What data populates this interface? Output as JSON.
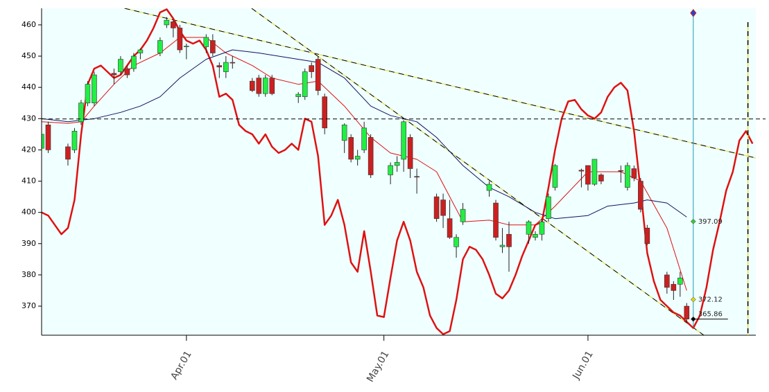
{
  "chart_data": {
    "type": "candlestick",
    "xlim": [
      -22,
      86.5
    ],
    "ylim": [
      360.7,
      465.3
    ],
    "yticks": [
      370,
      380,
      390,
      400,
      410,
      420,
      430,
      440,
      450,
      460
    ],
    "xticks": [
      {
        "value": 0,
        "label": "Apr.01"
      },
      {
        "value": 30,
        "label": "May.01"
      },
      {
        "value": 61,
        "label": "Jun.01"
      }
    ],
    "background": "#f0ffff",
    "up_color": "#22ee44",
    "down_color": "#cc2020",
    "candles": {
      "x": [
        -22,
        -21,
        -18,
        -17,
        -16,
        -15,
        -14,
        -11,
        -10,
        -9,
        -8,
        -7,
        -4,
        -3,
        -2,
        -1,
        0,
        3,
        4,
        5,
        6,
        7,
        10,
        11,
        12,
        13,
        17,
        18,
        19,
        20,
        21,
        24,
        25,
        26,
        27,
        28,
        31,
        32,
        33,
        34,
        35,
        38,
        39,
        40,
        41,
        42,
        46,
        47,
        48,
        49,
        52,
        53,
        54,
        55,
        56,
        60,
        61,
        62,
        63,
        66,
        67,
        68,
        69,
        70,
        73,
        74,
        75,
        76
      ],
      "open": [
        420.5,
        428,
        421,
        420,
        429,
        435,
        435,
        444.5,
        445,
        446,
        446,
        451,
        451,
        460,
        461,
        459,
        453,
        453,
        455,
        447,
        445,
        448,
        442,
        443,
        438,
        443,
        437,
        437,
        447,
        449,
        437,
        423,
        424,
        417,
        420,
        424,
        412,
        415,
        417,
        424,
        411.5,
        405,
        404,
        398,
        389,
        397,
        407,
        403,
        389,
        393,
        393,
        392,
        393,
        398,
        408,
        413.5,
        415,
        409,
        412,
        413.4,
        408,
        414,
        410,
        395,
        380,
        377,
        377,
        370
      ],
      "high": [
        426,
        429,
        422,
        427,
        436,
        442,
        445,
        446,
        450,
        447,
        451,
        452.5,
        456,
        462.5,
        461.5,
        460,
        454,
        457,
        457,
        448,
        450,
        450,
        443,
        444,
        444,
        444,
        438.5,
        446,
        448,
        450,
        438,
        428.5,
        425,
        420,
        429,
        425,
        416,
        418,
        429.5,
        425,
        414,
        406,
        406,
        404,
        393,
        403,
        410,
        404,
        395,
        397,
        397.5,
        394,
        398,
        406,
        415.5,
        414,
        415,
        417,
        412.5,
        415,
        416,
        415,
        411,
        396,
        381,
        378,
        381,
        371
      ],
      "low": [
        419,
        419,
        415,
        419,
        428,
        434,
        434,
        441,
        444,
        443,
        445,
        449,
        450,
        459,
        456,
        451,
        449,
        451,
        450,
        443,
        443,
        446,
        438.5,
        437,
        437,
        437.5,
        435,
        436,
        443,
        437.5,
        425,
        419,
        416,
        415,
        419,
        411,
        409,
        413,
        413,
        411,
        406,
        397,
        395,
        391.5,
        385.5,
        396,
        405,
        391,
        387,
        381,
        390,
        391,
        391,
        397,
        407,
        408,
        407,
        408.5,
        409,
        409.5,
        407,
        410,
        400,
        389.5,
        374,
        372,
        373,
        364.5
      ],
      "close": [
        425,
        420,
        417,
        426,
        435,
        441,
        444,
        444,
        449,
        444,
        450,
        452,
        455,
        461.5,
        459,
        452,
        453.2,
        456,
        451,
        446.5,
        448,
        447.8,
        439,
        438,
        443,
        438,
        437.8,
        445,
        445,
        439,
        427,
        428,
        417,
        418,
        427,
        412,
        415,
        416,
        429,
        414,
        411.3,
        398,
        399,
        392,
        392,
        401,
        409,
        392,
        389.5,
        389,
        397,
        393,
        397,
        405,
        415,
        413.2,
        409,
        417,
        410,
        413.2,
        415,
        411,
        401,
        390,
        376,
        375,
        379,
        365.86
      ]
    },
    "lines": [
      {
        "color": "#e01010",
        "style": "thick",
        "x": [
          -22,
          -21,
          -20,
          -19,
          -18,
          -17,
          -16,
          -15,
          -14,
          -13,
          -12,
          -11,
          -10,
          -9,
          -8,
          -7,
          -6,
          -5,
          -4,
          -3,
          -2,
          -1,
          0,
          1,
          2,
          3,
          4,
          5,
          6,
          7,
          8,
          9,
          10,
          11,
          12,
          13,
          14,
          15,
          16,
          17,
          18,
          19,
          20,
          21,
          22,
          23,
          24,
          25,
          26,
          27,
          28,
          29,
          30,
          31,
          32,
          33,
          34,
          35,
          36,
          37,
          38,
          39,
          40,
          41,
          42,
          43,
          44,
          45,
          46,
          47,
          48,
          49,
          50,
          51,
          52,
          53,
          54,
          55,
          56,
          57,
          58,
          59,
          60,
          61,
          62,
          63,
          64,
          65,
          66,
          67,
          68,
          69,
          70,
          71,
          72,
          73,
          74,
          75,
          76,
          77,
          78,
          79,
          80,
          81,
          82,
          83,
          84,
          85,
          86
        ],
        "values": [
          400,
          399,
          396,
          393,
          395,
          404,
          425,
          441,
          446,
          447,
          445,
          443,
          444,
          447,
          450,
          452,
          455,
          459,
          464,
          465,
          462,
          458,
          455,
          454,
          455,
          452,
          447,
          437,
          438,
          436,
          428,
          426,
          425,
          422,
          425,
          421,
          419,
          420,
          422,
          420,
          430,
          429,
          418,
          396,
          399,
          404,
          396,
          384,
          381,
          394,
          381,
          367,
          366.5,
          379,
          391,
          397,
          391,
          381,
          376,
          367,
          363,
          361,
          362,
          372,
          385,
          389,
          388,
          385,
          380,
          374,
          372.5,
          375,
          380,
          386,
          391,
          396,
          397,
          408,
          420,
          430,
          435.5,
          436,
          433,
          431,
          430,
          432,
          437,
          440,
          441.5,
          439,
          426,
          407,
          387,
          378,
          372,
          370,
          368,
          367,
          365,
          363,
          367,
          376,
          388,
          397,
          407,
          413,
          423,
          426,
          422
        ]
      },
      {
        "color": "#e01010",
        "style": "thin",
        "x": [
          -22,
          -18,
          -16,
          -14,
          -11,
          -8,
          -4,
          -1,
          3,
          6,
          10,
          13,
          17,
          20,
          24,
          28,
          31,
          35,
          38,
          42,
          46,
          49,
          53,
          56,
          61,
          66,
          69,
          73,
          76
        ],
        "values": [
          429,
          428.5,
          429,
          434,
          441,
          447,
          451,
          456,
          456,
          451,
          447,
          443,
          441,
          442,
          434,
          424,
          419,
          417,
          413,
          397,
          397.5,
          396,
          396,
          402,
          413,
          413,
          410,
          395,
          375
        ]
      },
      {
        "color": "#101060",
        "style": "thin",
        "x": [
          -22,
          -18,
          -14,
          -10,
          -7,
          -4,
          -1,
          3,
          7,
          11,
          17,
          20,
          24,
          28,
          31,
          35,
          38,
          42,
          46,
          49,
          53,
          56,
          61,
          64,
          68,
          70,
          73,
          76
        ],
        "values": [
          430,
          429,
          430,
          432,
          434,
          437,
          443,
          449,
          452,
          451,
          449,
          448,
          443,
          434,
          431,
          429,
          424,
          415,
          408,
          405,
          400,
          398,
          399,
          402,
          403,
          404,
          403,
          398.5
        ]
      }
    ],
    "trendlines": [
      {
        "x": [
          -9.4,
          86.5
        ],
        "values": [
          465.3,
          417.4
        ]
      },
      {
        "x": [
          9.9,
          78.6
        ],
        "values": [
          465.3,
          360.7
        ]
      }
    ],
    "hlines": [
      429.9
    ],
    "vlines": [
      {
        "x": 77,
        "color": "#1a9bb0",
        "style": "solid",
        "top": 463.8
      },
      {
        "x": 85.3,
        "color": "#000000",
        "style": "dashed"
      }
    ],
    "price_labels": [
      {
        "x": 77,
        "value": 397.09,
        "color": "#33cc33"
      },
      {
        "x": 77,
        "value": 372.12,
        "color": "#dddd00"
      },
      {
        "x": 77,
        "value": 365.86,
        "color": "#000000"
      }
    ]
  }
}
